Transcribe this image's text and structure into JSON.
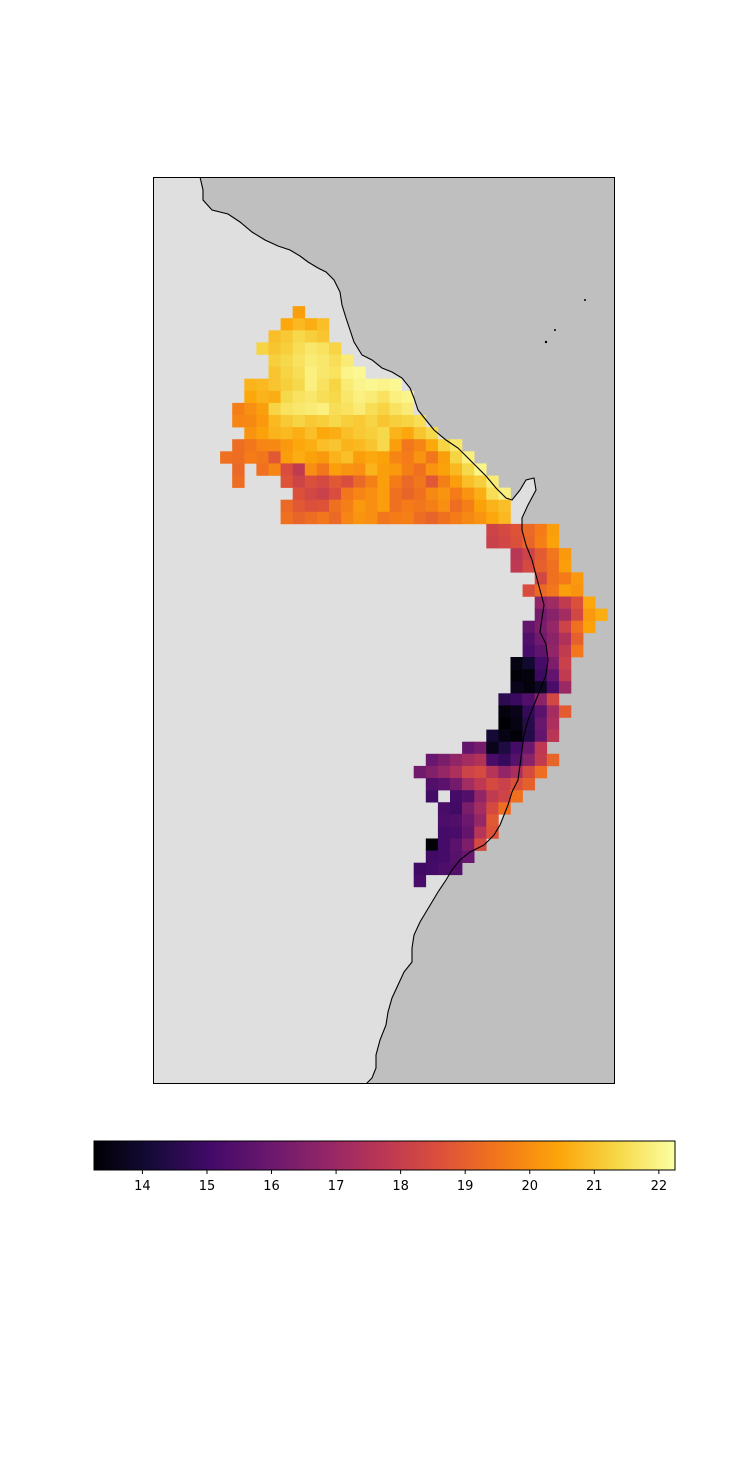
{
  "map": {
    "land_color": "#bfbfbf",
    "sea_color": "#dfdfdf",
    "frame_color": "#000000",
    "coastline_color": "#000000",
    "has_axes_labels": false
  },
  "colorbar": {
    "colormap": "inferno",
    "range": [
      13.25,
      22.25
    ],
    "orientation": "horizontal",
    "ticks": [
      14,
      15,
      16,
      17,
      18,
      19,
      20,
      21,
      22
    ],
    "tick_labels": [
      "14",
      "15",
      "16",
      "17",
      "18",
      "19",
      "20",
      "21",
      "22"
    ]
  },
  "chart_data": {
    "type": "heatmap",
    "colormap": "inferno",
    "value_range": [
      13.25,
      22.25
    ],
    "cell_grid_note": "gridded values along a coastline, rows north to south",
    "rows": [
      [
        null,
        null,
        null,
        null,
        null,
        null,
        null,
        null,
        null,
        null,
        null,
        null,
        null,
        null,
        null,
        null,
        null,
        null,
        null,
        null,
        null,
        null,
        null,
        null,
        null,
        null,
        null,
        null,
        null,
        null,
        null,
        null,
        null
      ],
      [
        null,
        null,
        null,
        null,
        null,
        null,
        null,
        20.3,
        null,
        null,
        null,
        null,
        null,
        null,
        null,
        null,
        null,
        null,
        null,
        null,
        null,
        null,
        null,
        null,
        null,
        null,
        null,
        null,
        null,
        null,
        null,
        null,
        null
      ],
      [
        null,
        null,
        null,
        null,
        null,
        null,
        20.5,
        20.8,
        20.6,
        20.9,
        null,
        null,
        null,
        null,
        null,
        null,
        null,
        null,
        null,
        null,
        null,
        null,
        null,
        null,
        null,
        null,
        null,
        null,
        null,
        null,
        null,
        null,
        null
      ],
      [
        null,
        null,
        null,
        null,
        null,
        20.9,
        21.1,
        21.4,
        21.2,
        21.0,
        null,
        null,
        null,
        null,
        null,
        null,
        null,
        null,
        null,
        null,
        null,
        null,
        null,
        null,
        null,
        null,
        null,
        null,
        null,
        null,
        null,
        null,
        null
      ],
      [
        null,
        null,
        null,
        null,
        21.3,
        21.0,
        21.2,
        21.5,
        21.7,
        21.6,
        21.3,
        null,
        null,
        null,
        null,
        null,
        null,
        null,
        null,
        null,
        null,
        null,
        null,
        null,
        null,
        null,
        null,
        null,
        null,
        null,
        null,
        null,
        null
      ],
      [
        null,
        null,
        null,
        null,
        null,
        21.2,
        21.4,
        21.6,
        21.8,
        21.7,
        21.5,
        21.8,
        null,
        null,
        null,
        null,
        null,
        null,
        null,
        null,
        null,
        null,
        null,
        null,
        null,
        null,
        null,
        null,
        null,
        null,
        null,
        null,
        null
      ],
      [
        null,
        null,
        null,
        null,
        null,
        21.0,
        21.3,
        21.5,
        21.9,
        21.7,
        21.6,
        22.0,
        22.1,
        null,
        null,
        null,
        null,
        null,
        null,
        null,
        null,
        null,
        null,
        null,
        null,
        null,
        null,
        null,
        null,
        null,
        null,
        null,
        null
      ],
      [
        null,
        null,
        null,
        20.7,
        20.8,
        21.0,
        21.2,
        21.4,
        21.9,
        21.6,
        21.3,
        21.8,
        22.0,
        22.1,
        22.0,
        22.1,
        null,
        null,
        null,
        null,
        null,
        null,
        null,
        null,
        null,
        null,
        null,
        null,
        null,
        null,
        null,
        null,
        null
      ],
      [
        null,
        null,
        null,
        20.5,
        20.7,
        20.6,
        21.4,
        21.6,
        21.7,
        21.5,
        21.4,
        21.7,
        21.9,
        21.8,
        21.6,
        21.9,
        22.0,
        null,
        null,
        null,
        null,
        null,
        null,
        null,
        null,
        null,
        null,
        null,
        null,
        null,
        null,
        null,
        null
      ],
      [
        null,
        null,
        19.7,
        20.0,
        20.3,
        21.3,
        21.6,
        21.7,
        21.8,
        21.9,
        21.5,
        21.6,
        21.8,
        21.5,
        21.3,
        21.6,
        21.8,
        null,
        null,
        null,
        null,
        null,
        null,
        null,
        null,
        null,
        null,
        null,
        null,
        null,
        null,
        null,
        null
      ],
      [
        null,
        null,
        19.8,
        19.9,
        20.2,
        20.8,
        21.1,
        21.3,
        21.1,
        21.2,
        21.4,
        21.2,
        21.1,
        21.3,
        21.0,
        21.2,
        21.3,
        21.5,
        null,
        null,
        null,
        null,
        null,
        null,
        null,
        null,
        null,
        null,
        null,
        null,
        null,
        null,
        null
      ],
      [
        null,
        null,
        null,
        20.1,
        20.4,
        20.7,
        20.8,
        20.6,
        20.9,
        20.5,
        20.6,
        20.9,
        21.1,
        21.2,
        21.4,
        20.7,
        20.5,
        21.0,
        21.4,
        null,
        null,
        null,
        null,
        null,
        null,
        null,
        null,
        null,
        null,
        null,
        null,
        null,
        null
      ],
      [
        null,
        null,
        19.3,
        19.5,
        19.8,
        19.9,
        20.2,
        20.5,
        20.6,
        20.9,
        21.0,
        20.7,
        20.8,
        21.0,
        21.4,
        20.3,
        19.5,
        19.8,
        20.5,
        21.3,
        21.7,
        null,
        null,
        null,
        null,
        null,
        null,
        null,
        null,
        null,
        null,
        null,
        null
      ],
      [
        null,
        19.4,
        19.3,
        19.6,
        19.5,
        18.8,
        20.3,
        20.6,
        20.4,
        20.2,
        20.7,
        20.9,
        20.3,
        20.5,
        20.4,
        19.8,
        19.6,
        20.1,
        19.5,
        20.3,
        21.3,
        21.9,
        null,
        null,
        null,
        null,
        null,
        null,
        null,
        null,
        null,
        null,
        null
      ],
      [
        null,
        null,
        19.2,
        null,
        19.4,
        19.8,
        18.5,
        17.9,
        20.0,
        19.5,
        20.3,
        20.1,
        20.0,
        20.7,
        20.3,
        20.2,
        19.7,
        19.4,
        20.1,
        20.4,
        20.8,
        21.4,
        22.0,
        null,
        null,
        null,
        null,
        null,
        null,
        null,
        null,
        null,
        null
      ],
      [
        null,
        null,
        19.3,
        null,
        null,
        null,
        18.7,
        18.2,
        18.6,
        18.4,
        18.8,
        18.5,
        19.2,
        19.7,
        20.3,
        19.6,
        19.2,
        19.5,
        18.8,
        19.7,
        20.3,
        20.9,
        21.2,
        21.8,
        null,
        null,
        null,
        null,
        null,
        null,
        null,
        null,
        null
      ],
      [
        null,
        null,
        null,
        null,
        null,
        null,
        null,
        18.6,
        18.3,
        18.1,
        18.5,
        19.5,
        19.8,
        20.0,
        20.3,
        19.4,
        19.1,
        19.4,
        19.9,
        20.1,
        19.6,
        20.1,
        20.6,
        21.5,
        21.9,
        null,
        null,
        null,
        null,
        null,
        null,
        null,
        null
      ],
      [
        null,
        null,
        null,
        null,
        null,
        null,
        19.2,
        18.8,
        18.6,
        18.7,
        19.4,
        19.7,
        20.2,
        20.0,
        20.3,
        19.4,
        19.6,
        19.5,
        19.7,
        20.0,
        19.3,
        19.7,
        20.4,
        20.7,
        20.9,
        null,
        null,
        null,
        null,
        null,
        null,
        null,
        null
      ],
      [
        null,
        null,
        null,
        null,
        null,
        null,
        19.4,
        19.1,
        19.3,
        19.5,
        19.2,
        19.8,
        20.1,
        20.0,
        19.5,
        19.6,
        19.7,
        19.3,
        19.1,
        19.4,
        19.6,
        19.9,
        20.1,
        20.5,
        20.8,
        null,
        null,
        null,
        null,
        null,
        null,
        null,
        null
      ],
      [
        null,
        null,
        null,
        null,
        null,
        null,
        null,
        null,
        null,
        null,
        null,
        null,
        null,
        null,
        null,
        null,
        null,
        null,
        null,
        null,
        null,
        null,
        null,
        null,
        null,
        null,
        null,
        null,
        null,
        null,
        null,
        null,
        null
      ]
    ],
    "coastal_strip_rows": [
      {
        "start_col": 23,
        "values": [
          18.2,
          18.4,
          18.7,
          19.2,
          19.6,
          20.3
        ]
      },
      {
        "start_col": 23,
        "values": [
          18.1,
          18.3,
          18.6,
          19.1,
          19.7,
          20.4
        ]
      },
      {
        "start_col": 25,
        "values": [
          17.7,
          18.2,
          18.9,
          19.5,
          20.2
        ]
      },
      {
        "start_col": 25,
        "values": [
          17.8,
          18.4,
          19.0,
          19.4,
          20.3
        ]
      },
      {
        "start_col": 27,
        "values": [
          18.3,
          19.4,
          19.6,
          20.2
        ]
      },
      {
        "start_col": 26,
        "values": [
          18.5,
          19.2,
          19.5,
          20.3,
          20.1
        ]
      },
      {
        "start_col": 27,
        "values": [
          16.8,
          17.1,
          17.9,
          18.6,
          20.5
        ]
      },
      {
        "start_col": 27,
        "values": [
          16.2,
          16.6,
          17.2,
          18.3,
          20.2,
          20.6
        ]
      },
      {
        "start_col": 26,
        "values": [
          15.8,
          16.3,
          16.9,
          18.2,
          19.4,
          20.4
        ]
      },
      {
        "start_col": 26,
        "values": [
          15.4,
          16.1,
          16.7,
          17.5,
          19.0
        ]
      },
      {
        "start_col": 26,
        "values": [
          15.2,
          15.7,
          16.8,
          17.9,
          19.5
        ]
      },
      {
        "start_col": 25,
        "values": [
          13.5,
          14.0,
          15.1,
          16.4,
          18.1
        ]
      },
      {
        "start_col": 25,
        "values": [
          13.3,
          13.4,
          14.9,
          15.8,
          17.9
        ]
      },
      {
        "start_col": 25,
        "values": [
          13.6,
          13.4,
          13.8,
          15.2,
          17.0
        ]
      },
      {
        "start_col": 24,
        "values": [
          14.6,
          14.9,
          15.4,
          16.7,
          18.3
        ]
      },
      {
        "start_col": 24,
        "values": [
          13.4,
          13.6,
          14.8,
          15.6,
          17.2,
          18.9
        ]
      },
      {
        "start_col": 24,
        "values": [
          13.2,
          13.5,
          14.5,
          15.9,
          17.4
        ]
      },
      {
        "start_col": 23,
        "values": [
          14.1,
          13.5,
          13.3,
          14.4,
          15.8,
          17.7
        ]
      },
      {
        "start_col": 21,
        "values": [
          15.8,
          16.2,
          13.6,
          14.3,
          15.1,
          16.0,
          17.8
        ]
      },
      {
        "start_col": 18,
        "values": [
          15.9,
          16.3,
          16.8,
          17.2,
          17.5,
          15.2,
          14.8,
          15.5,
          16.6,
          17.9,
          19.1
        ]
      },
      {
        "start_col": 17,
        "values": [
          16.1,
          16.5,
          16.9,
          17.4,
          18.2,
          18.4,
          17.6,
          16.8,
          17.3,
          18.4,
          19.3
        ]
      },
      {
        "start_col": 18,
        "values": [
          15.4,
          15.6,
          16.2,
          17.2,
          17.8,
          18.4,
          18.1,
          18.6,
          19.0
        ]
      },
      {
        "start_col": 18,
        "values": [
          15.0,
          null,
          15.1,
          15.4,
          16.8,
          17.9,
          18.2,
          19.4
        ]
      },
      {
        "start_col": 19,
        "values": [
          15.2,
          15.0,
          16.3,
          17.2,
          18.4,
          19.3
        ]
      },
      {
        "start_col": 19,
        "values": [
          15.3,
          15.4,
          16.0,
          16.9,
          18.8
        ]
      },
      {
        "start_col": 19,
        "values": [
          15.1,
          15.2,
          15.8,
          17.6,
          18.7
        ]
      },
      {
        "start_col": 18,
        "values": [
          13.3,
          15.1,
          15.6,
          16.4,
          18.4
        ]
      },
      {
        "start_col": 18,
        "values": [
          15.0,
          15.1,
          15.5,
          15.9
        ]
      },
      {
        "start_col": 17,
        "values": [
          15.0,
          15.1,
          15.3,
          15.4
        ]
      },
      {
        "start_col": 17,
        "values": [
          15.2
        ]
      }
    ]
  }
}
